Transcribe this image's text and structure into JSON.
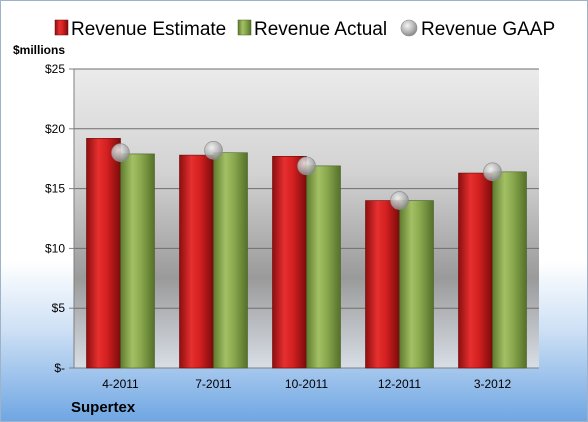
{
  "chart_data": {
    "type": "bar",
    "title": "",
    "company": "Supertex",
    "unit_label": "$millions",
    "categories": [
      "4-2011",
      "7-2011",
      "10-2011",
      "12-2011",
      "3-2012"
    ],
    "series": [
      {
        "name": "Revenue Estimate",
        "type": "bar",
        "color": "#d42020",
        "values": [
          19.2,
          17.8,
          17.7,
          14.0,
          16.3
        ]
      },
      {
        "name": "Revenue Actual",
        "type": "bar",
        "color": "#8aa94e",
        "values": [
          17.9,
          18.0,
          16.9,
          14.0,
          16.4
        ]
      },
      {
        "name": "Revenue GAAP",
        "type": "marker",
        "color": "#c0c0c0",
        "values": [
          18.0,
          18.2,
          16.9,
          14.0,
          16.4
        ]
      }
    ],
    "ylim": [
      0,
      25
    ],
    "yticks": [
      0,
      5,
      10,
      15,
      20,
      25
    ],
    "ytick_labels": [
      "$-",
      "$5",
      "$10",
      "$15",
      "$20",
      "$25"
    ],
    "grid": true,
    "legend_position": "top"
  }
}
